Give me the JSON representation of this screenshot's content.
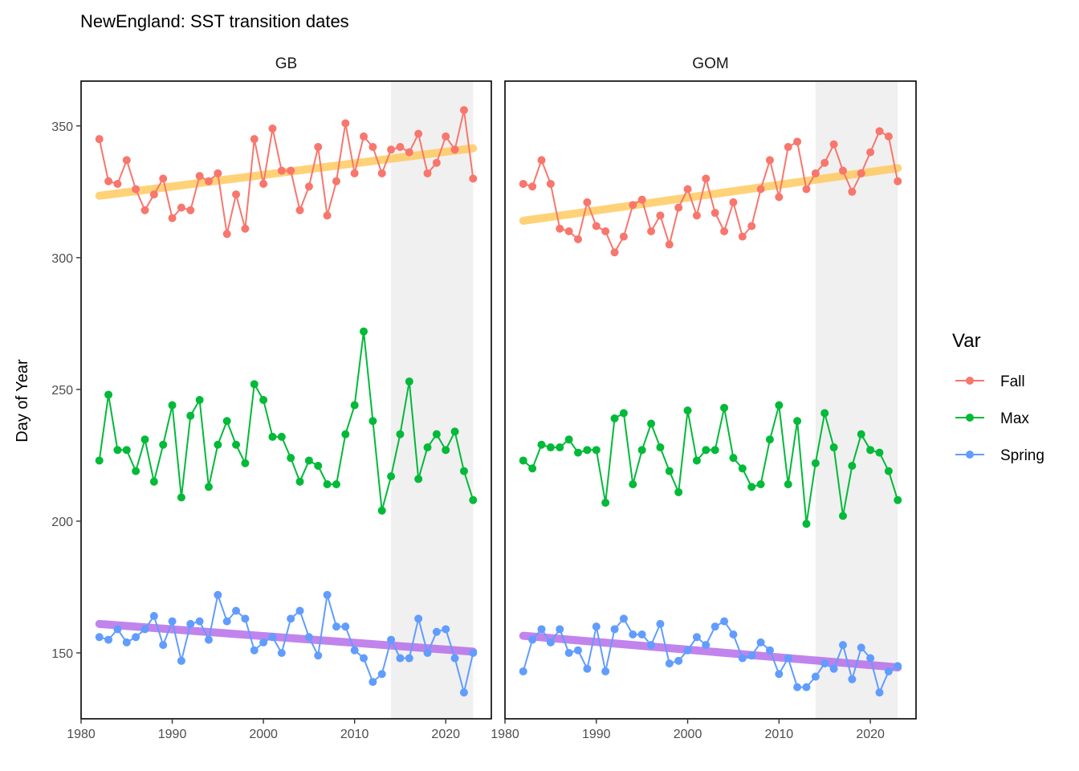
{
  "chart_data": {
    "type": "line",
    "title": "NewEngland: SST transition dates",
    "xlabel": "",
    "ylabel": "Day of Year",
    "xlim": [
      1980,
      2025
    ],
    "ylim": [
      125,
      367
    ],
    "x_ticks": [
      1980,
      1990,
      2000,
      2010,
      2020
    ],
    "y_ticks": [
      150,
      200,
      250,
      300,
      350
    ],
    "grid": false,
    "legend": {
      "title": "Var",
      "position": "right",
      "entries": [
        {
          "name": "Fall",
          "color": "#F8766D"
        },
        {
          "name": "Max",
          "color": "#00BA38"
        },
        {
          "name": "Spring",
          "color": "#619CFF"
        }
      ]
    },
    "shaded_period": [
      2014,
      2023
    ],
    "shade_color": "#f0f0f0",
    "trend_colors": {
      "Fall": "#ffc857",
      "Spring": "#b266e8"
    },
    "panels": [
      {
        "name": "GB",
        "x": [
          1982,
          1983,
          1984,
          1985,
          1986,
          1987,
          1988,
          1989,
          1990,
          1991,
          1992,
          1993,
          1994,
          1995,
          1996,
          1997,
          1998,
          1999,
          2000,
          2001,
          2002,
          2003,
          2004,
          2005,
          2006,
          2007,
          2008,
          2009,
          2010,
          2011,
          2012,
          2013,
          2014,
          2015,
          2016,
          2017,
          2018,
          2019,
          2020,
          2021,
          2022,
          2023
        ],
        "series": [
          {
            "name": "Fall",
            "values": [
              345,
              329,
              328,
              337,
              326,
              318,
              324,
              330,
              315,
              319,
              318,
              331,
              329,
              332,
              309,
              324,
              311,
              345,
              328,
              349,
              333,
              333,
              318,
              327,
              342,
              316,
              329,
              351,
              332,
              346,
              342,
              332,
              341,
              342,
              340,
              347,
              332,
              336,
              346,
              341,
              356,
              330
            ]
          },
          {
            "name": "Max",
            "values": [
              223,
              248,
              227,
              227,
              219,
              231,
              215,
              229,
              244,
              209,
              240,
              246,
              213,
              229,
              238,
              229,
              222,
              252,
              246,
              232,
              232,
              224,
              215,
              223,
              221,
              214,
              214,
              233,
              244,
              272,
              238,
              204,
              217,
              233,
              253,
              216,
              228,
              233,
              227,
              234,
              219,
              208
            ]
          },
          {
            "name": "Spring",
            "values": [
              156,
              155,
              159,
              154,
              156,
              159,
              164,
              153,
              162,
              147,
              161,
              162,
              155,
              172,
              162,
              166,
              163,
              151,
              154,
              156,
              150,
              163,
              166,
              156,
              149,
              172,
              160,
              160,
              151,
              148,
              139,
              142,
              155,
              148,
              148,
              163,
              150,
              158,
              159,
              148,
              135,
              150
            ]
          }
        ],
        "trends": [
          {
            "name": "Fall",
            "x": [
              1982,
              2023
            ],
            "values": [
              323.5,
              341.5
            ]
          },
          {
            "name": "Spring",
            "x": [
              1982,
              2023
            ],
            "values": [
              161,
              150.5
            ]
          }
        ]
      },
      {
        "name": "GOM",
        "x": [
          1982,
          1983,
          1984,
          1985,
          1986,
          1987,
          1988,
          1989,
          1990,
          1991,
          1992,
          1993,
          1994,
          1995,
          1996,
          1997,
          1998,
          1999,
          2000,
          2001,
          2002,
          2003,
          2004,
          2005,
          2006,
          2007,
          2008,
          2009,
          2010,
          2011,
          2012,
          2013,
          2014,
          2015,
          2016,
          2017,
          2018,
          2019,
          2020,
          2021,
          2022,
          2023
        ],
        "series": [
          {
            "name": "Fall",
            "values": [
              328,
              327,
              337,
              328,
              311,
              310,
              307,
              321,
              312,
              310,
              302,
              308,
              320,
              322,
              310,
              316,
              305,
              319,
              326,
              316,
              330,
              317,
              310,
              321,
              308,
              312,
              326,
              337,
              323,
              342,
              344,
              326,
              332,
              336,
              343,
              333,
              325,
              332,
              340,
              348,
              346,
              329
            ]
          },
          {
            "name": "Max",
            "values": [
              223,
              220,
              229,
              228,
              228,
              231,
              226,
              227,
              227,
              207,
              239,
              241,
              214,
              227,
              237,
              228,
              219,
              211,
              242,
              223,
              227,
              227,
              243,
              224,
              220,
              213,
              214,
              231,
              244,
              214,
              238,
              199,
              222,
              241,
              228,
              202,
              221,
              233,
              227,
              226,
              219,
              208
            ]
          },
          {
            "name": "Spring",
            "values": [
              143,
              155,
              159,
              154,
              159,
              150,
              151,
              144,
              160,
              143,
              159,
              163,
              157,
              157,
              153,
              161,
              146,
              147,
              151,
              156,
              153,
              160,
              162,
              157,
              148,
              149,
              154,
              151,
              142,
              148,
              137,
              137,
              141,
              146,
              144,
              153,
              140,
              152,
              148,
              135,
              143,
              145
            ]
          }
        ],
        "trends": [
          {
            "name": "Fall",
            "x": [
              1982,
              2023
            ],
            "values": [
              314,
              334
            ]
          },
          {
            "name": "Spring",
            "x": [
              1982,
              2023
            ],
            "values": [
              156.5,
              144.5
            ]
          }
        ]
      }
    ]
  }
}
